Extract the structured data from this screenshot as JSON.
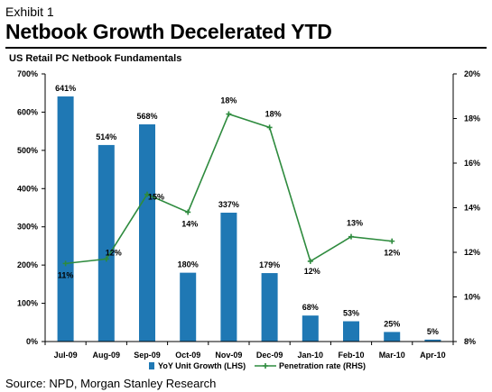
{
  "header": {
    "exhibit": "Exhibit 1",
    "title": "Netbook Growth Decelerated YTD",
    "subtitle": "US Retail PC Netbook Fundamentals"
  },
  "footer": {
    "source": "Source: NPD, Morgan Stanley Research"
  },
  "colors": {
    "bar": "#1f78b4",
    "line": "#2e8b3e"
  },
  "chart_data": {
    "type": "bar",
    "categories": [
      "Jul-09",
      "Aug-09",
      "Sep-09",
      "Oct-09",
      "Nov-09",
      "Dec-09",
      "Jan-10",
      "Feb-10",
      "Mar-10",
      "Apr-10"
    ],
    "series": [
      {
        "name": "YoY Unit Growth (LHS)",
        "axis": "left",
        "type": "bar",
        "values": [
          641,
          514,
          568,
          180,
          337,
          179,
          68,
          53,
          25,
          5
        ],
        "labels": [
          "641%",
          "514%",
          "568%",
          "180%",
          "337%",
          "179%",
          "68%",
          "53%",
          "25%",
          "5%"
        ]
      },
      {
        "name": "Penetration rate (RHS)",
        "axis": "right",
        "type": "line",
        "values": [
          11.5,
          11.7,
          14.6,
          13.8,
          18.2,
          17.6,
          11.6,
          12.7,
          12.5,
          null
        ],
        "labels": [
          "11%",
          "12%",
          "15%",
          "14%",
          "18%",
          "18%",
          "12%",
          "13%",
          "12%",
          ""
        ]
      }
    ],
    "ylim_left": [
      0,
      700
    ],
    "ylim_right": [
      8,
      20
    ],
    "yticks_left": [
      "0%",
      "100%",
      "200%",
      "300%",
      "400%",
      "500%",
      "600%",
      "700%"
    ],
    "yticks_right": [
      "8%",
      "10%",
      "12%",
      "14%",
      "16%",
      "18%",
      "20%"
    ],
    "legend": "bottom"
  }
}
